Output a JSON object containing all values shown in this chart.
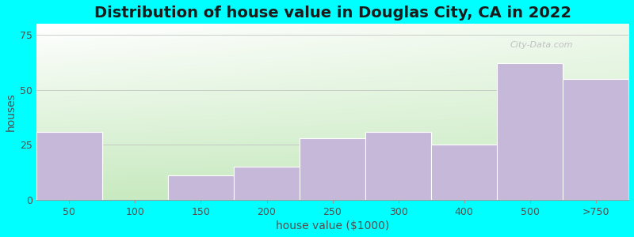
{
  "title": "Distribution of house value in Douglas City, CA in 2022",
  "xlabel": "house value ($1000)",
  "ylabel": "houses",
  "categories": [
    "50",
    "100",
    "150",
    "200",
    "250",
    "300",
    "400",
    "500",
    ">750"
  ],
  "values": [
    31,
    0,
    11,
    15,
    28,
    31,
    25,
    62,
    55
  ],
  "bar_color": "#c5b8d8",
  "background_color": "#00ffff",
  "plot_bg_color": "#dff0dc",
  "yticks": [
    0,
    25,
    50,
    75
  ],
  "ylim": [
    0,
    80
  ],
  "title_fontsize": 14,
  "label_fontsize": 10,
  "tick_fontsize": 9,
  "watermark_text": "City-Data.com",
  "bin_edges": [
    0,
    1,
    2,
    3,
    4,
    5,
    6,
    7,
    8,
    9
  ],
  "bar_widths": [
    1,
    1,
    1,
    1,
    1,
    1,
    1,
    1,
    1
  ]
}
